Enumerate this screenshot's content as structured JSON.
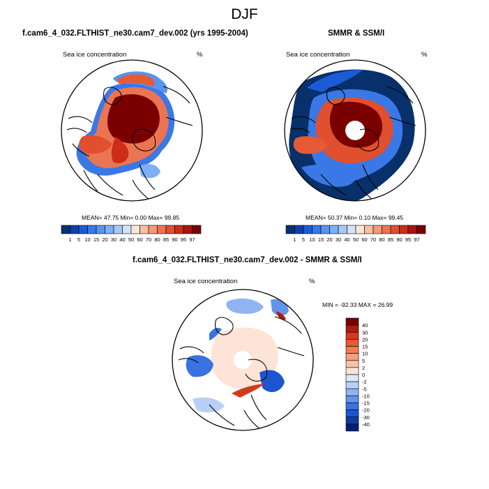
{
  "figure": {
    "season": "DJF"
  },
  "panels": {
    "model": {
      "title": "f.cam6_4_032.FLTHIST_ne30.cam7_dev.002 (yrs 1995-2004)",
      "variable": "Sea ice concentration",
      "units": "%",
      "stats": "MEAN=  47.75  Min=   0.00  Max=  99.85",
      "mean": 47.75,
      "min": 0.0,
      "max": 99.85
    },
    "obs": {
      "title": "SMMR & SSM/I",
      "variable": "Sea ice concentration",
      "units": "%",
      "stats": "MEAN=  50.37  Min=   0.10  Max=  99.45",
      "mean": 50.37,
      "min": 0.1,
      "max": 99.45
    },
    "diff": {
      "title": "f.cam6_4_032.FLTHIST_ne30.cam7_dev.002 - SMMR & SSM/I",
      "variable": "Sea ice concentration",
      "units": "%",
      "stats": "MIN = -92.33 MAX =  26.99",
      "min": -92.33,
      "max": 26.99
    }
  },
  "colorbar_abs": {
    "labels": [
      "1",
      "5",
      "10",
      "15",
      "20",
      "30",
      "40",
      "50",
      "60",
      "70",
      "80",
      "85",
      "90",
      "95",
      "97"
    ],
    "colors": [
      "#08306b",
      "#0d3fb0",
      "#1c5bd6",
      "#3a78e6",
      "#5a93ee",
      "#7eaff4",
      "#a6c8f7",
      "#d2e2fa",
      "#fde5d6",
      "#f7bfa3",
      "#f19a7a",
      "#ea7553",
      "#e04f2e",
      "#cc2d18",
      "#a81410",
      "#7a0000"
    ]
  },
  "colorbar_diff": {
    "labels": [
      "40",
      "30",
      "20",
      "15",
      "10",
      "5",
      "2",
      "0",
      "-2",
      "-5",
      "-10",
      "-15",
      "-20",
      "-30",
      "-40"
    ],
    "colors": [
      "#7a0000",
      "#b01a10",
      "#d23a20",
      "#e65a34",
      "#f07d56",
      "#f5a07e",
      "#f9c3a8",
      "#fde4d6",
      "#dce8fb",
      "#b8d0f7",
      "#8fb4f1",
      "#6494ea",
      "#3a72e0",
      "#1d55cf",
      "#0d3ca6",
      "#071f72"
    ]
  },
  "chart_data": [
    {
      "type": "heatmap",
      "title": "f.cam6_4_032.FLTHIST_ne30.cam7_dev.002 (yrs 1995-2004)",
      "variable": "Sea ice concentration",
      "units": "%",
      "projection": "north polar stereographic",
      "season": "DJF",
      "mean": 47.75,
      "min": 0.0,
      "max": 99.85,
      "levels": [
        1,
        5,
        10,
        15,
        20,
        30,
        40,
        50,
        60,
        70,
        80,
        85,
        90,
        95,
        97
      ]
    },
    {
      "type": "heatmap",
      "title": "SMMR & SSM/I",
      "variable": "Sea ice concentration",
      "units": "%",
      "projection": "north polar stereographic",
      "season": "DJF",
      "mean": 50.37,
      "min": 0.1,
      "max": 99.45,
      "levels": [
        1,
        5,
        10,
        15,
        20,
        30,
        40,
        50,
        60,
        70,
        80,
        85,
        90,
        95,
        97
      ]
    },
    {
      "type": "heatmap",
      "title": "f.cam6_4_032.FLTHIST_ne30.cam7_dev.002 - SMMR & SSM/I",
      "variable": "Sea ice concentration",
      "units": "%",
      "projection": "north polar stereographic",
      "season": "DJF",
      "min": -92.33,
      "max": 26.99,
      "levels": [
        -40,
        -30,
        -20,
        -15,
        -10,
        -5,
        -2,
        0,
        2,
        5,
        10,
        15,
        20,
        30,
        40
      ]
    }
  ]
}
